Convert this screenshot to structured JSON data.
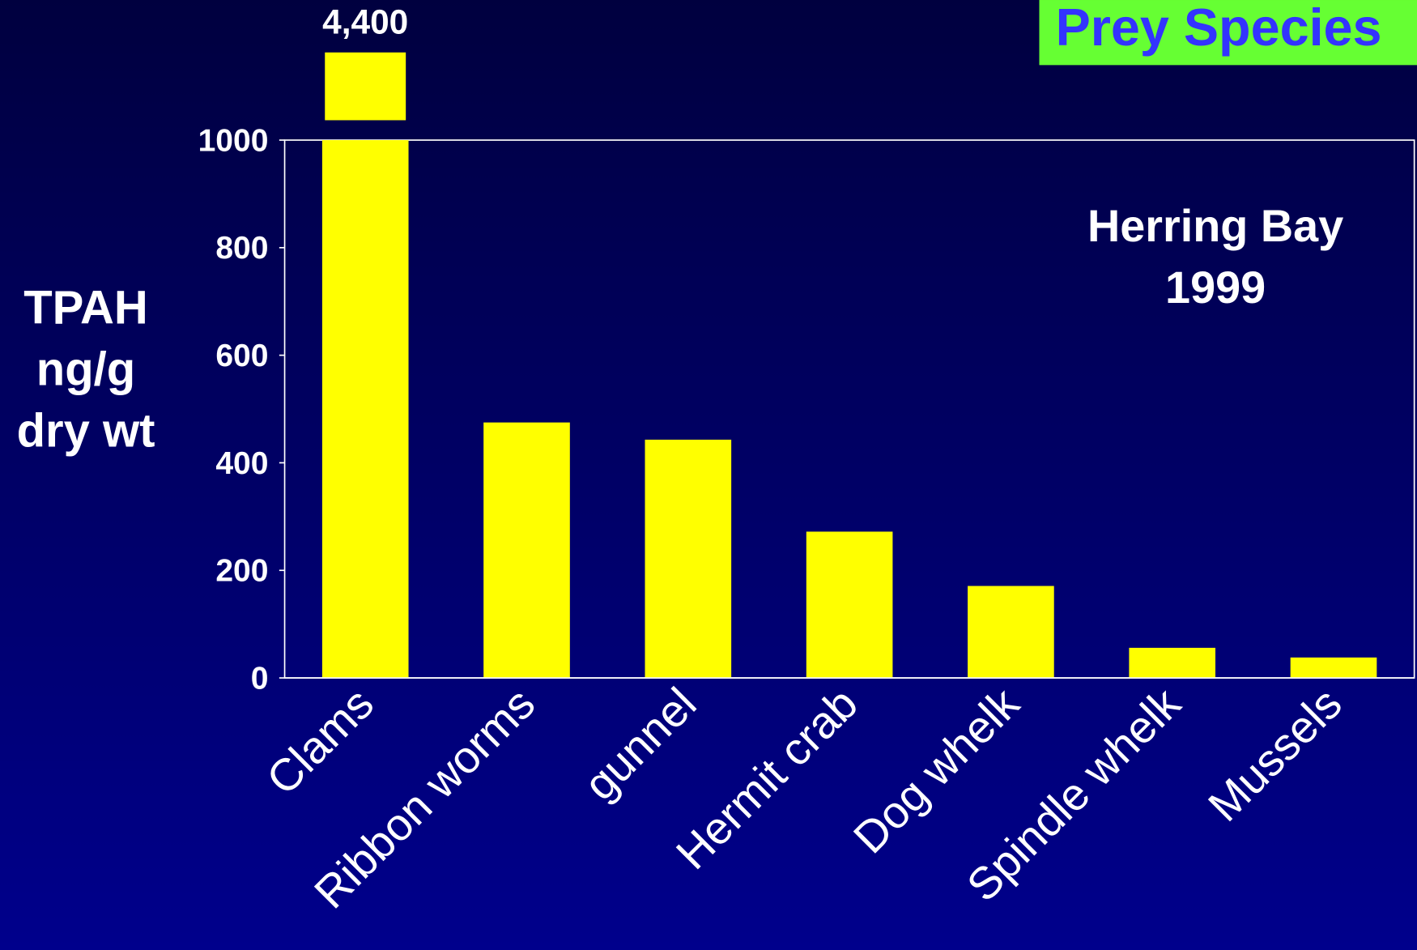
{
  "chart_data": {
    "type": "bar",
    "title": "Prey Species",
    "annotation": [
      "Herring Bay",
      "1999"
    ],
    "y_label": [
      "TPAH",
      "ng/g",
      "dry wt"
    ],
    "categories": [
      "Clams",
      "Ribbon worms",
      "gunnel",
      "Hermit crab",
      "Dog whelk",
      "Spindle whelk",
      "Mussels"
    ],
    "values": [
      4400,
      475,
      443,
      272,
      171,
      56,
      38
    ],
    "value_labels": [
      "4,400",
      null,
      null,
      null,
      null,
      null,
      null
    ],
    "color": "#ffff00",
    "ylim": [
      0,
      1000
    ],
    "yticks": [
      0,
      200,
      400,
      600,
      800,
      1000
    ],
    "grid": false
  }
}
